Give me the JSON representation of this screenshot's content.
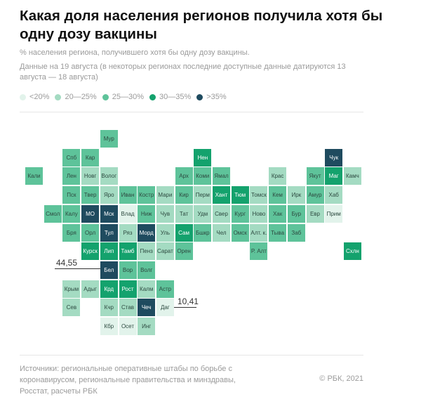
{
  "chart_data": {
    "type": "heatmap",
    "title": "Какая доля населения регионов получила хотя бы одну дозу вакцины",
    "subtitle": "% населения региона, получившего хотя бы одну дозу вакцины.",
    "note": "Данные на 19 августа (в некоторых регионах последние доступные данные датируются 13 августа — 18 августа)",
    "legend": [
      {
        "label": "<20%",
        "color": "#e2f3eb"
      },
      {
        "label": "20—25%",
        "color": "#a4dbc2"
      },
      {
        "label": "25—30%",
        "color": "#5ec39a"
      },
      {
        "label": "30—35%",
        "color": "#14a26d"
      },
      {
        "label": ">35%",
        "color": "#1f4b5f"
      }
    ],
    "tiles": [
      [
        "Мур",
        2
      ],
      [
        "Спб",
        2
      ],
      [
        "Кар",
        2
      ],
      [
        "Нен",
        3
      ],
      [
        "Чук",
        4
      ],
      [
        "Кали",
        2
      ],
      [
        "Лен",
        2
      ],
      [
        "Новг",
        1
      ],
      [
        "Волог",
        1
      ],
      [
        "Арх",
        2
      ],
      [
        "Коми",
        2
      ],
      [
        "Ямал",
        2
      ],
      [
        "Крас",
        1
      ],
      [
        "Якут",
        2
      ],
      [
        "Маг",
        3
      ],
      [
        "Камч",
        1
      ],
      [
        "Пск",
        2
      ],
      [
        "Твер",
        2
      ],
      [
        "Яро",
        1
      ],
      [
        "Иван",
        2
      ],
      [
        "Костр",
        2
      ],
      [
        "Мари",
        1
      ],
      [
        "Кир",
        2
      ],
      [
        "Перм",
        1
      ],
      [
        "Хант",
        3
      ],
      [
        "Тюм",
        3
      ],
      [
        "Томск",
        1
      ],
      [
        "Кем",
        2
      ],
      [
        "Ирк",
        1
      ],
      [
        "Амур",
        2
      ],
      [
        "Хаб",
        1
      ],
      [
        "Смол",
        2
      ],
      [
        "Калу",
        2
      ],
      [
        "МО",
        4
      ],
      [
        "Мск",
        4
      ],
      [
        "Влад",
        0
      ],
      [
        "Ниж",
        2
      ],
      [
        "Чув",
        1
      ],
      [
        "Тат",
        1
      ],
      [
        "Удм",
        1
      ],
      [
        "Свер",
        1
      ],
      [
        "Кург",
        2
      ],
      [
        "Ново",
        1
      ],
      [
        "Хак",
        2
      ],
      [
        "Бур",
        2
      ],
      [
        "Евр",
        1
      ],
      [
        "Прим",
        0
      ],
      [
        "Бря",
        2
      ],
      [
        "Орл",
        2
      ],
      [
        "Тул",
        4
      ],
      [
        "Ряз",
        1
      ],
      [
        "Морд",
        4
      ],
      [
        "Уль",
        1
      ],
      [
        "Сам",
        3
      ],
      [
        "Бшкр",
        2
      ],
      [
        "Чел",
        1
      ],
      [
        "Омск",
        2
      ],
      [
        "Алт. к.",
        1
      ],
      [
        "Тыва",
        2
      ],
      [
        "Заб",
        2
      ],
      [
        "Курск",
        3
      ],
      [
        "Лип",
        3
      ],
      [
        "Тамб",
        3
      ],
      [
        "Пенз",
        1
      ],
      [
        "Сарат",
        1
      ],
      [
        "Орен",
        2
      ],
      [
        "Р. Алт",
        2
      ],
      [
        "Схлн",
        3
      ],
      [
        "Бел",
        4
      ],
      [
        "Вор",
        2
      ],
      [
        "Волг",
        2
      ],
      [
        "Крым",
        1
      ],
      [
        "Адыг",
        1
      ],
      [
        "Крд",
        3
      ],
      [
        "Рост",
        3
      ],
      [
        "Калм",
        1
      ],
      [
        "Астр",
        2
      ],
      [
        "Сев",
        1
      ],
      [
        "Кчр",
        1
      ],
      [
        "Став",
        1
      ],
      [
        "Чеч",
        4
      ],
      [
        "Даг",
        0
      ],
      [
        "Кбр",
        0
      ],
      [
        "Осет",
        0
      ],
      [
        "Инг",
        1
      ]
    ],
    "annotations": [
      {
        "region": "Бел",
        "value": "44,55"
      },
      {
        "region": "Даг",
        "value": "10,41"
      }
    ]
  },
  "footer": {
    "sources": "Источники: региональные оперативные штабы по борьбе с коронавирусом, региональные правительства и минздравы, Росстат, расчеты РБК",
    "copyright": "© РБК, 2021"
  }
}
